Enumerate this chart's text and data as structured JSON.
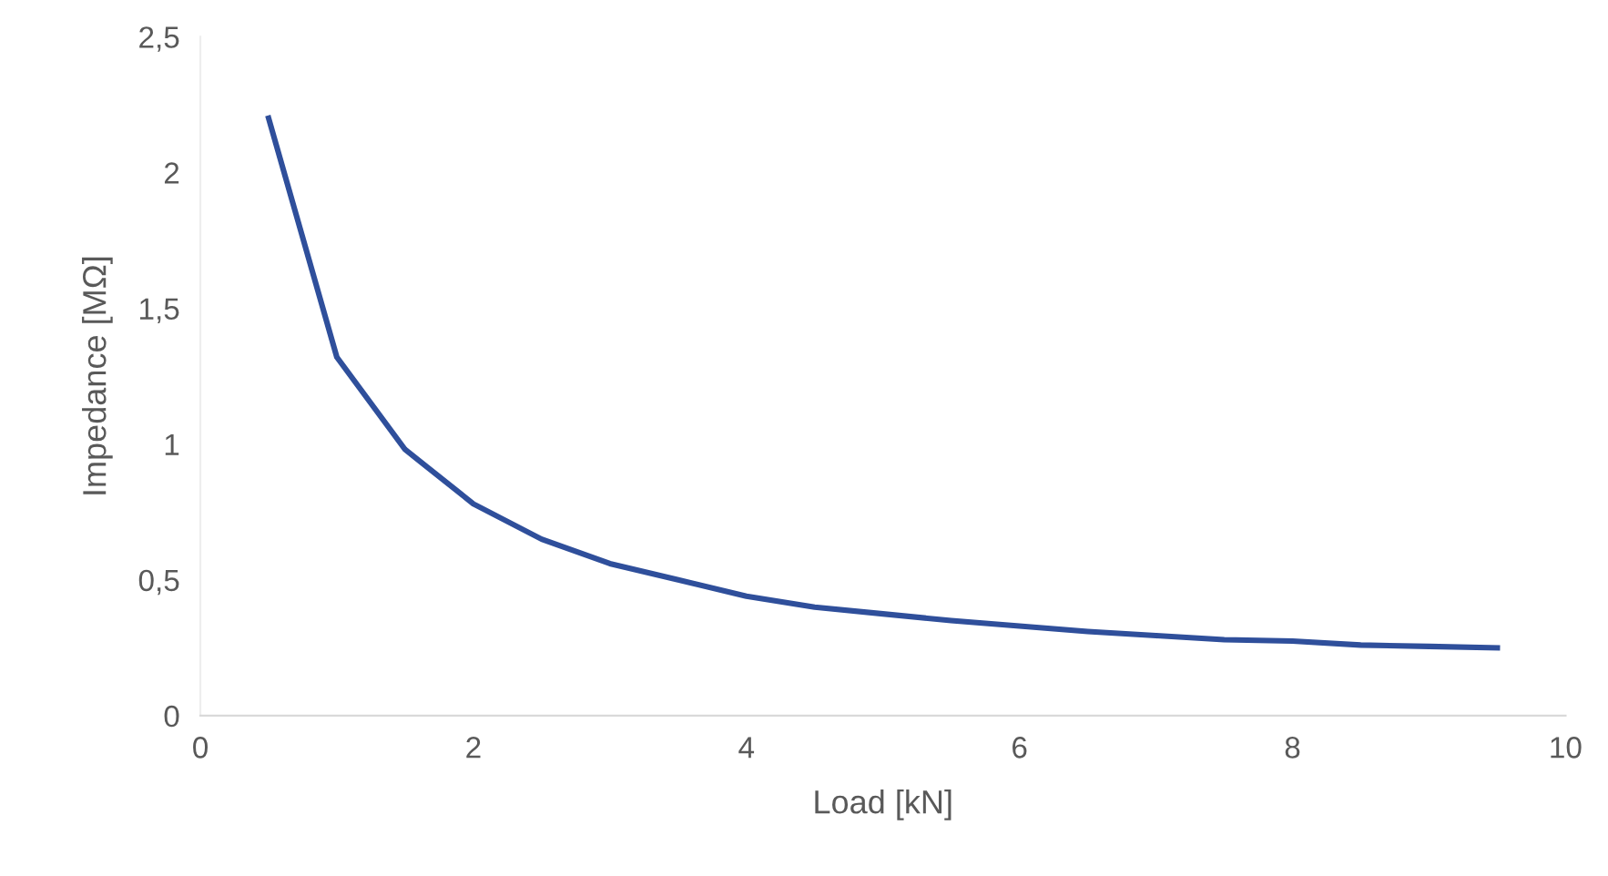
{
  "chart_data": {
    "type": "line",
    "xlabel": "Load [kN]",
    "ylabel": "Impedance [MΩ]",
    "x": [
      0.5,
      1,
      1.5,
      2,
      2.5,
      3,
      3.5,
      4,
      4.5,
      5,
      5.5,
      6,
      6.5,
      7,
      7.5,
      8,
      8.5,
      9,
      9.5
    ],
    "series": [
      {
        "color": "#2f4f9b",
        "values": [
          2.2,
          1.32,
          0.98,
          0.78,
          0.65,
          0.56,
          0.5,
          0.44,
          0.4,
          0.375,
          0.35,
          0.33,
          0.31,
          0.295,
          0.28,
          0.275,
          0.26,
          0.255,
          0.25
        ]
      }
    ],
    "xlim": [
      0,
      10
    ],
    "xticks": [
      0,
      2,
      4,
      6,
      8,
      10
    ],
    "ylim": [
      0,
      2.5
    ],
    "yticks": [
      0,
      {
        "value": 0.5,
        "label": "0,5"
      },
      1,
      {
        "value": 1.5,
        "label": "1,5"
      },
      2,
      {
        "value": 2.5,
        "label": "2,5"
      }
    ],
    "grid": false,
    "legend": false,
    "marker": "none",
    "line_style": "solid"
  }
}
